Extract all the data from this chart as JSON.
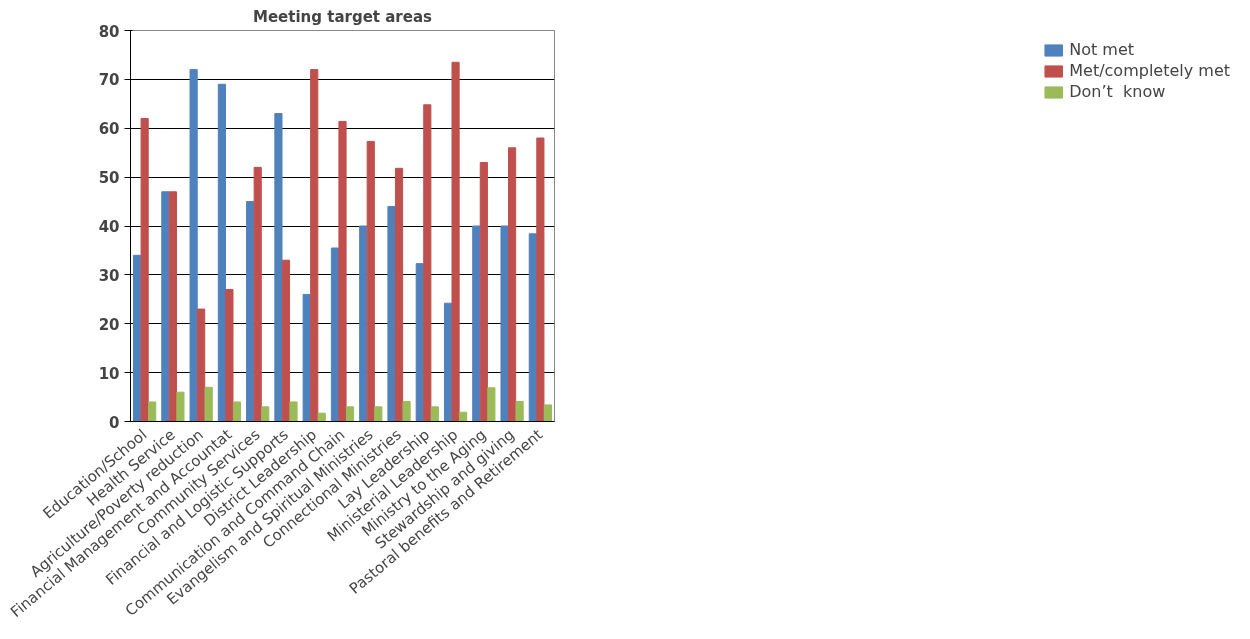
{
  "chart_data": {
    "type": "bar",
    "title": "Meeting target areas",
    "categories": [
      "Education/School",
      "Health Service",
      "Agriculture/Poverty reduction",
      "Financial Management and Accountat",
      "Community Services",
      "Financial and Logistic Supports",
      "District Leadership",
      "Communication and Command Chain",
      "Evangelism and Spiritual Ministries",
      "Connectional Ministries",
      "Lay Leadership",
      "Ministerial Leadership",
      "Ministry to the Aging",
      "Stewardship and giving",
      "Pastoral benefits and Retirement"
    ],
    "series": [
      {
        "name": "Not met",
        "color": "#4f81bd",
        "values": [
          34,
          47,
          72,
          69,
          45,
          63,
          26,
          35.5,
          40,
          44,
          32.3,
          24.2,
          40,
          40,
          38.4
        ]
      },
      {
        "name": "Met/completely met",
        "color": "#c0504d",
        "values": [
          62,
          47,
          23,
          27,
          52,
          33,
          72,
          61.4,
          57.3,
          51.8,
          64.8,
          73.5,
          53,
          56,
          58
        ]
      },
      {
        "name": "Don’t  know",
        "color": "#9bbb59",
        "values": [
          4,
          6,
          7,
          4,
          3,
          4,
          1.7,
          3,
          3,
          4.1,
          3,
          1.9,
          6.9,
          4.1,
          3.4
        ]
      }
    ],
    "ylim": [
      0,
      80
    ],
    "yticks": [
      0,
      10,
      20,
      30,
      40,
      50,
      60,
      70,
      80
    ],
    "grid": "y",
    "legend": "right"
  }
}
